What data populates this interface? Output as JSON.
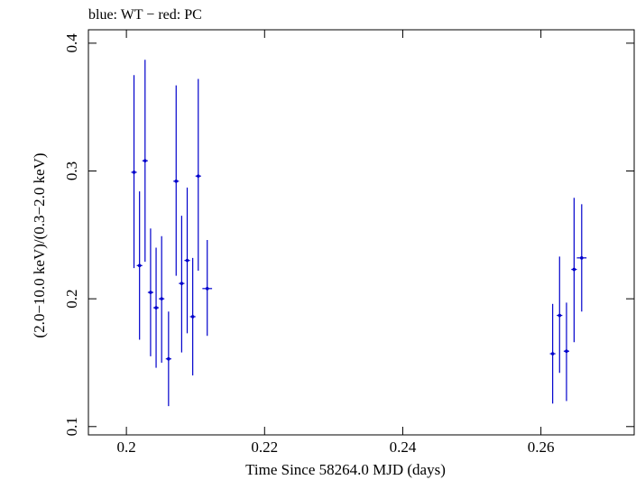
{
  "chart_data": {
    "type": "scatter",
    "title": "blue: WT − red: PC",
    "xlabel": "Time Since 58264.0 MJD (days)",
    "ylabel": "(2.0−10.0 keV)/(0.3−2.0 keV)",
    "xlim": [
      0.1945,
      0.2735
    ],
    "ylim": [
      0.0935,
      0.4105
    ],
    "x_ticks": [
      0.2,
      0.22,
      0.24,
      0.26
    ],
    "x_tick_labels": [
      "0.2",
      "0.22",
      "0.24",
      "0.26"
    ],
    "y_ticks": [
      0.1,
      0.2,
      0.3,
      0.4
    ],
    "y_tick_labels": [
      "0.1",
      "0.2",
      "0.3",
      "0.4"
    ],
    "grid": false,
    "colors": {
      "WT": "#0000cc",
      "PC": "#cc0000"
    },
    "series": [
      {
        "name": "WT",
        "color": "#0000cc",
        "points": [
          {
            "x": 0.2011,
            "xerr": 0.0004,
            "y": 0.299,
            "ylo": 0.224,
            "yhi": 0.375
          },
          {
            "x": 0.2019,
            "xerr": 0.0004,
            "y": 0.226,
            "ylo": 0.168,
            "yhi": 0.284
          },
          {
            "x": 0.2027,
            "xerr": 0.0004,
            "y": 0.308,
            "ylo": 0.229,
            "yhi": 0.387
          },
          {
            "x": 0.2035,
            "xerr": 0.0004,
            "y": 0.205,
            "ylo": 0.155,
            "yhi": 0.255
          },
          {
            "x": 0.2043,
            "xerr": 0.0004,
            "y": 0.193,
            "ylo": 0.146,
            "yhi": 0.24
          },
          {
            "x": 0.2051,
            "xerr": 0.0004,
            "y": 0.2,
            "ylo": 0.15,
            "yhi": 0.249
          },
          {
            "x": 0.2061,
            "xerr": 0.0004,
            "y": 0.153,
            "ylo": 0.116,
            "yhi": 0.19
          },
          {
            "x": 0.2072,
            "xerr": 0.0004,
            "y": 0.292,
            "ylo": 0.218,
            "yhi": 0.367
          },
          {
            "x": 0.208,
            "xerr": 0.0004,
            "y": 0.212,
            "ylo": 0.158,
            "yhi": 0.265
          },
          {
            "x": 0.2088,
            "xerr": 0.0004,
            "y": 0.23,
            "ylo": 0.173,
            "yhi": 0.287
          },
          {
            "x": 0.2096,
            "xerr": 0.0004,
            "y": 0.186,
            "ylo": 0.14,
            "yhi": 0.232
          },
          {
            "x": 0.2104,
            "xerr": 0.0004,
            "y": 0.296,
            "ylo": 0.222,
            "yhi": 0.372
          },
          {
            "x": 0.2117,
            "xerr": 0.0007,
            "y": 0.208,
            "ylo": 0.171,
            "yhi": 0.246
          },
          {
            "x": 0.2617,
            "xerr": 0.0004,
            "y": 0.157,
            "ylo": 0.118,
            "yhi": 0.196
          },
          {
            "x": 0.2627,
            "xerr": 0.0004,
            "y": 0.187,
            "ylo": 0.142,
            "yhi": 0.233
          },
          {
            "x": 0.2637,
            "xerr": 0.0004,
            "y": 0.159,
            "ylo": 0.12,
            "yhi": 0.197
          },
          {
            "x": 0.2648,
            "xerr": 0.0004,
            "y": 0.223,
            "ylo": 0.166,
            "yhi": 0.279
          },
          {
            "x": 0.2659,
            "xerr": 0.0007,
            "y": 0.232,
            "ylo": 0.19,
            "yhi": 0.274
          }
        ]
      }
    ]
  }
}
